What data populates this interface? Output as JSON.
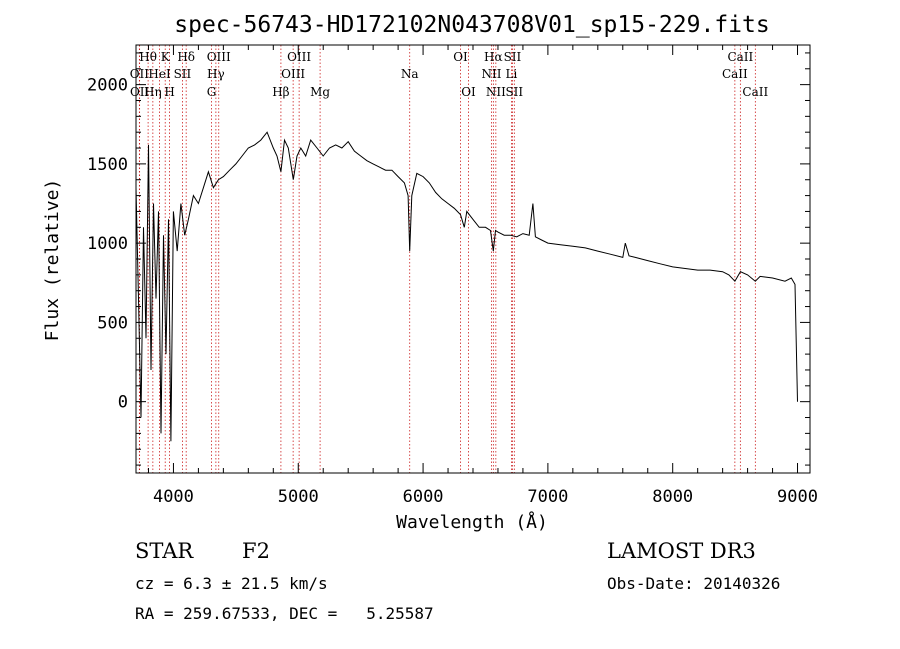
{
  "chart_data": {
    "type": "line",
    "title": "spec-56743-HD172102N043708V01_sp15-229.fits",
    "xlabel": "Wavelength (Å)",
    "ylabel": "Flux (relative)",
    "xlim": [
      3700,
      9100
    ],
    "ylim": [
      -450,
      2250
    ],
    "xticks": [
      4000,
      5000,
      6000,
      7000,
      8000,
      9000
    ],
    "yticks": [
      0,
      500,
      1000,
      1500,
      2000
    ],
    "grid": false,
    "series": [
      {
        "name": "flux",
        "x": [
          3700,
          3720,
          3740,
          3760,
          3780,
          3800,
          3820,
          3840,
          3860,
          3880,
          3900,
          3920,
          3940,
          3960,
          3980,
          4000,
          4030,
          4060,
          4090,
          4120,
          4160,
          4200,
          4240,
          4280,
          4320,
          4360,
          4400,
          4450,
          4500,
          4550,
          4600,
          4650,
          4700,
          4750,
          4800,
          4830,
          4861,
          4890,
          4920,
          4960,
          4990,
          5020,
          5060,
          5100,
          5150,
          5200,
          5250,
          5300,
          5350,
          5400,
          5450,
          5500,
          5550,
          5600,
          5650,
          5700,
          5750,
          5800,
          5850,
          5880,
          5893,
          5910,
          5950,
          6000,
          6050,
          6100,
          6150,
          6200,
          6250,
          6300,
          6330,
          6350,
          6400,
          6450,
          6500,
          6540,
          6563,
          6580,
          6600,
          6650,
          6700,
          6750,
          6800,
          6850,
          6880,
          6900,
          6950,
          7000,
          7100,
          7200,
          7300,
          7400,
          7500,
          7600,
          7620,
          7650,
          7700,
          7800,
          7900,
          8000,
          8100,
          8200,
          8300,
          8400,
          8450,
          8498,
          8542,
          8600,
          8662,
          8700,
          8800,
          8900,
          8950,
          8980,
          9000
        ],
        "y": [
          1350,
          650,
          -100,
          1100,
          400,
          1620,
          200,
          1250,
          650,
          1200,
          -200,
          1050,
          300,
          1150,
          -250,
          1200,
          950,
          1250,
          1050,
          1150,
          1300,
          1250,
          1350,
          1450,
          1350,
          1400,
          1420,
          1460,
          1500,
          1550,
          1600,
          1620,
          1650,
          1700,
          1600,
          1550,
          1450,
          1650,
          1600,
          1400,
          1550,
          1600,
          1550,
          1650,
          1600,
          1550,
          1600,
          1620,
          1600,
          1640,
          1580,
          1550,
          1520,
          1500,
          1480,
          1460,
          1460,
          1420,
          1380,
          1300,
          950,
          1300,
          1440,
          1420,
          1380,
          1320,
          1280,
          1250,
          1220,
          1180,
          1100,
          1200,
          1150,
          1100,
          1100,
          1080,
          950,
          1080,
          1070,
          1050,
          1050,
          1040,
          1060,
          1050,
          1250,
          1040,
          1020,
          1000,
          990,
          980,
          970,
          950,
          930,
          910,
          1000,
          920,
          910,
          890,
          870,
          850,
          840,
          830,
          830,
          820,
          800,
          760,
          820,
          800,
          760,
          790,
          780,
          760,
          780,
          740,
          0
        ]
      }
    ],
    "line_markers": [
      {
        "name": "Hθ",
        "x": 3797,
        "row": 0
      },
      {
        "name": "OII",
        "x": 3727,
        "row": 1
      },
      {
        "name": "OII",
        "x": 3729,
        "row": 2
      },
      {
        "name": "HeI",
        "x": 3889,
        "row": 1
      },
      {
        "name": "Hη",
        "x": 3835,
        "row": 2
      },
      {
        "name": "K",
        "x": 3934,
        "row": 0
      },
      {
        "name": "H",
        "x": 3969,
        "row": 2
      },
      {
        "name": "Hδ",
        "x": 4102,
        "row": 0
      },
      {
        "name": "SII",
        "x": 4072,
        "row": 1
      },
      {
        "name": "OIII",
        "x": 4363,
        "row": 0
      },
      {
        "name": "Hγ",
        "x": 4340,
        "row": 1
      },
      {
        "name": "G",
        "x": 4305,
        "row": 2
      },
      {
        "name": "Hβ",
        "x": 4861,
        "row": 2
      },
      {
        "name": "OIII",
        "x": 5007,
        "row": 0
      },
      {
        "name": "OIII",
        "x": 4959,
        "row": 1
      },
      {
        "name": "Mg",
        "x": 5175,
        "row": 2
      },
      {
        "name": "Na",
        "x": 5893,
        "row": 1
      },
      {
        "name": "OI",
        "x": 6300,
        "row": 0
      },
      {
        "name": "OI",
        "x": 6364,
        "row": 2
      },
      {
        "name": "Hα",
        "x": 6563,
        "row": 0
      },
      {
        "name": "NII",
        "x": 6548,
        "row": 1
      },
      {
        "name": "NII",
        "x": 6583,
        "row": 2
      },
      {
        "name": "SII",
        "x": 6716,
        "row": 0
      },
      {
        "name": "Li",
        "x": 6708,
        "row": 1
      },
      {
        "name": "SII",
        "x": 6731,
        "row": 2
      },
      {
        "name": "CaII",
        "x": 8542,
        "row": 0
      },
      {
        "name": "CaII",
        "x": 8498,
        "row": 1
      },
      {
        "name": "CaII",
        "x": 8662,
        "row": 2
      }
    ]
  },
  "info": {
    "object_class": "STAR",
    "subclass": "F2",
    "survey": "LAMOST DR3",
    "redshift": "cz = 6.3 ± 21.5 km/s",
    "obs_date": "Obs-Date: 20140326",
    "coords": "RA = 259.67533, DEC =   5.25587"
  },
  "colors": {
    "axis": "#000000",
    "spectrum": "#000000",
    "marker_line": "#cc2222"
  }
}
